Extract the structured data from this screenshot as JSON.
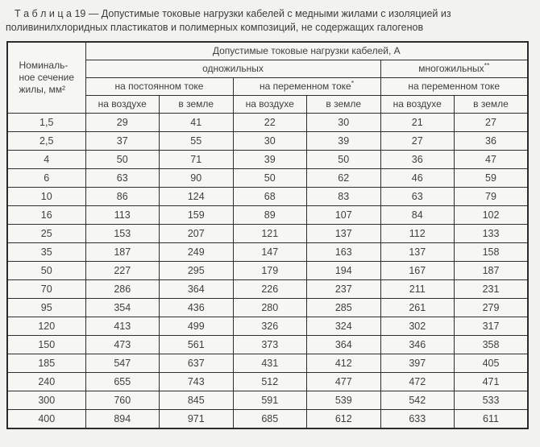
{
  "title": "Т а б л и ц а  19 — Допустимые токовые нагрузки кабелей с медными жилами с изоляцией из поливинилхлоридных пластикатов и полимерных композиций, не содержащих галогенов",
  "table": {
    "corner_header": [
      "Номиналь-",
      "ное сечение",
      "жилы, мм²"
    ],
    "top_header": "Допустимые токовые нагрузки кабелей, А",
    "groups": {
      "single_core": "одножильных",
      "multi_core": "многожильных",
      "multi_core_mark": "**"
    },
    "current_types": {
      "dc": "на постоянном токе",
      "ac_single": "на переменном токе",
      "ac_single_mark": "*",
      "ac_multi": "на переменном токе"
    },
    "env_headers": [
      "на воздухе",
      "в земле",
      "на воздухе",
      "в земле",
      "на воздухе",
      "в земле"
    ],
    "rows": [
      [
        "1,5",
        "29",
        "41",
        "22",
        "30",
        "21",
        "27"
      ],
      [
        "2,5",
        "37",
        "55",
        "30",
        "39",
        "27",
        "36"
      ],
      [
        "4",
        "50",
        "71",
        "39",
        "50",
        "36",
        "47"
      ],
      [
        "6",
        "63",
        "90",
        "50",
        "62",
        "46",
        "59"
      ],
      [
        "10",
        "86",
        "124",
        "68",
        "83",
        "63",
        "79"
      ],
      [
        "16",
        "113",
        "159",
        "89",
        "107",
        "84",
        "102"
      ],
      [
        "25",
        "153",
        "207",
        "121",
        "137",
        "112",
        "133"
      ],
      [
        "35",
        "187",
        "249",
        "147",
        "163",
        "137",
        "158"
      ],
      [
        "50",
        "227",
        "295",
        "179",
        "194",
        "167",
        "187"
      ],
      [
        "70",
        "286",
        "364",
        "226",
        "237",
        "211",
        "231"
      ],
      [
        "95",
        "354",
        "436",
        "280",
        "285",
        "261",
        "279"
      ],
      [
        "120",
        "413",
        "499",
        "326",
        "324",
        "302",
        "317"
      ],
      [
        "150",
        "473",
        "561",
        "373",
        "364",
        "346",
        "358"
      ],
      [
        "185",
        "547",
        "637",
        "431",
        "412",
        "397",
        "405"
      ],
      [
        "240",
        "655",
        "743",
        "512",
        "477",
        "472",
        "471"
      ],
      [
        "300",
        "760",
        "845",
        "591",
        "539",
        "542",
        "533"
      ],
      [
        "400",
        "894",
        "971",
        "685",
        "612",
        "633",
        "611"
      ]
    ]
  },
  "colors": {
    "border": "#2e2e2e",
    "text": "#3f3f3f",
    "background": "#f2f2ef"
  }
}
